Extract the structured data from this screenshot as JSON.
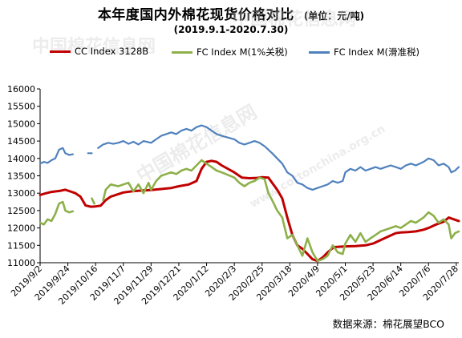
{
  "title": "本年度国内外棉花现货价格对比",
  "unit": "(单位：元/吨)",
  "subtitle": "(2019.9.1-2020.7.30)",
  "source": "数据来源：棉花展望BCO",
  "watermarks": [
    "中国棉花信息网",
    "www.cottonchina.org.cn"
  ],
  "chart_data": {
    "type": "line",
    "ylim": [
      11000,
      16000
    ],
    "yticks": [
      11000,
      11500,
      12000,
      12500,
      13000,
      13500,
      14000,
      14500,
      15000,
      15500,
      16000
    ],
    "xlim": [
      "2019-09-02",
      "2020-07-30"
    ],
    "xticks": [
      "2019/9/2",
      "2019/9/24",
      "2019/10/16",
      "2019/11/7",
      "2019/11/29",
      "2019/12/21",
      "2020/1/12",
      "2020/2/3",
      "2020/2/25",
      "2020/3/18",
      "2020/4/9",
      "2020/5/1",
      "2020/5/23",
      "2020/6/14",
      "2020/7/6",
      "2020/7/28"
    ],
    "grid": false,
    "legend_position": "top",
    "series": [
      {
        "name": "CC Index 3128B",
        "color": "#c00000",
        "points": [
          [
            "2019-09-02",
            12950
          ],
          [
            "2019-09-06",
            12990
          ],
          [
            "2019-09-10",
            13030
          ],
          [
            "2019-09-14",
            13050
          ],
          [
            "2019-09-18",
            13070
          ],
          [
            "2019-09-22",
            13100
          ],
          [
            "2019-09-26",
            13050
          ],
          [
            "2019-09-30",
            13000
          ],
          [
            "2019-10-04",
            12900
          ],
          [
            "2019-10-08",
            12650
          ],
          [
            "2019-10-12",
            12610
          ],
          [
            "2019-10-16",
            12620
          ],
          [
            "2019-10-20",
            12640
          ],
          [
            "2019-10-24",
            12800
          ],
          [
            "2019-10-28",
            12900
          ],
          [
            "2019-11-01",
            12950
          ],
          [
            "2019-11-07",
            13020
          ],
          [
            "2019-11-15",
            13060
          ],
          [
            "2019-11-23",
            13080
          ],
          [
            "2019-11-29",
            13090
          ],
          [
            "2019-12-07",
            13120
          ],
          [
            "2019-12-15",
            13150
          ],
          [
            "2019-12-21",
            13200
          ],
          [
            "2019-12-29",
            13250
          ],
          [
            "2020-01-04",
            13350
          ],
          [
            "2020-01-08",
            13700
          ],
          [
            "2020-01-12",
            13900
          ],
          [
            "2020-01-16",
            13930
          ],
          [
            "2020-01-20",
            13900
          ],
          [
            "2020-01-24",
            13800
          ],
          [
            "2020-02-03",
            13600
          ],
          [
            "2020-02-09",
            13450
          ],
          [
            "2020-02-15",
            13430
          ],
          [
            "2020-02-21",
            13440
          ],
          [
            "2020-02-25",
            13460
          ],
          [
            "2020-03-01",
            13450
          ],
          [
            "2020-03-04",
            13300
          ],
          [
            "2020-03-08",
            13100
          ],
          [
            "2020-03-12",
            12850
          ],
          [
            "2020-03-16",
            12300
          ],
          [
            "2020-03-20",
            11800
          ],
          [
            "2020-03-24",
            11500
          ],
          [
            "2020-03-28",
            11400
          ],
          [
            "2020-04-01",
            11250
          ],
          [
            "2020-04-05",
            11100
          ],
          [
            "2020-04-09",
            11050
          ],
          [
            "2020-04-13",
            11150
          ],
          [
            "2020-04-17",
            11300
          ],
          [
            "2020-04-22",
            11450
          ],
          [
            "2020-05-01",
            11470
          ],
          [
            "2020-05-09",
            11480
          ],
          [
            "2020-05-17",
            11500
          ],
          [
            "2020-05-23",
            11550
          ],
          [
            "2020-05-29",
            11650
          ],
          [
            "2020-06-04",
            11750
          ],
          [
            "2020-06-10",
            11850
          ],
          [
            "2020-06-14",
            11870
          ],
          [
            "2020-06-20",
            11880
          ],
          [
            "2020-06-26",
            11900
          ],
          [
            "2020-07-02",
            11950
          ],
          [
            "2020-07-06",
            12000
          ],
          [
            "2020-07-12",
            12100
          ],
          [
            "2020-07-18",
            12180
          ],
          [
            "2020-07-22",
            12300
          ],
          [
            "2020-07-26",
            12250
          ],
          [
            "2020-07-30",
            12200
          ]
        ]
      },
      {
        "name": "FC Index M(1%关税)",
        "color": "#8db04a",
        "points": [
          [
            "2019-09-02",
            12150
          ],
          [
            "2019-09-05",
            12100
          ],
          [
            "2019-09-08",
            12250
          ],
          [
            "2019-09-11",
            12200
          ],
          [
            "2019-09-14",
            12400
          ],
          [
            "2019-09-17",
            12700
          ],
          [
            "2019-09-20",
            12750
          ],
          [
            "2019-09-22",
            12500
          ],
          [
            "2019-09-25",
            12450
          ],
          [
            "2019-09-28",
            12480
          ],
          [
            "2019-09-30",
            null
          ],
          [
            "2019-10-13",
            12850
          ],
          [
            "2019-10-15",
            12700
          ],
          [
            "2019-10-16",
            null
          ],
          [
            "2019-10-22",
            12800
          ],
          [
            "2019-10-24",
            13100
          ],
          [
            "2019-10-28",
            13250
          ],
          [
            "2019-11-03",
            13200
          ],
          [
            "2019-11-07",
            13250
          ],
          [
            "2019-11-11",
            13300
          ],
          [
            "2019-11-15",
            13050
          ],
          [
            "2019-11-19",
            13250
          ],
          [
            "2019-11-23",
            13000
          ],
          [
            "2019-11-27",
            13300
          ],
          [
            "2019-11-29",
            13100
          ],
          [
            "2019-12-03",
            13350
          ],
          [
            "2019-12-07",
            13500
          ],
          [
            "2019-12-11",
            13550
          ],
          [
            "2019-12-15",
            13600
          ],
          [
            "2019-12-19",
            13550
          ],
          [
            "2019-12-23",
            13650
          ],
          [
            "2019-12-27",
            13700
          ],
          [
            "2019-12-31",
            13650
          ],
          [
            "2020-01-04",
            13800
          ],
          [
            "2020-01-08",
            13950
          ],
          [
            "2020-01-12",
            13850
          ],
          [
            "2020-01-16",
            13750
          ],
          [
            "2020-01-20",
            13650
          ],
          [
            "2020-01-24",
            13600
          ],
          [
            "2020-02-03",
            13450
          ],
          [
            "2020-02-07",
            13300
          ],
          [
            "2020-02-11",
            13200
          ],
          [
            "2020-02-15",
            13300
          ],
          [
            "2020-02-19",
            13350
          ],
          [
            "2020-02-23",
            13450
          ],
          [
            "2020-02-27",
            13400
          ],
          [
            "2020-03-01",
            13000
          ],
          [
            "2020-03-04",
            12800
          ],
          [
            "2020-03-08",
            12500
          ],
          [
            "2020-03-12",
            12300
          ],
          [
            "2020-03-16",
            11700
          ],
          [
            "2020-03-20",
            11800
          ],
          [
            "2020-03-24",
            11500
          ],
          [
            "2020-03-28",
            11200
          ],
          [
            "2020-04-01",
            11700
          ],
          [
            "2020-04-05",
            11300
          ],
          [
            "2020-04-09",
            11050
          ],
          [
            "2020-04-13",
            11100
          ],
          [
            "2020-04-17",
            11200
          ],
          [
            "2020-04-21",
            11500
          ],
          [
            "2020-04-25",
            11300
          ],
          [
            "2020-04-29",
            11250
          ],
          [
            "2020-05-01",
            11550
          ],
          [
            "2020-05-05",
            11800
          ],
          [
            "2020-05-09",
            11600
          ],
          [
            "2020-05-13",
            11850
          ],
          [
            "2020-05-17",
            11600
          ],
          [
            "2020-05-21",
            11700
          ],
          [
            "2020-05-25",
            11800
          ],
          [
            "2020-05-29",
            11900
          ],
          [
            "2020-06-02",
            11950
          ],
          [
            "2020-06-06",
            12000
          ],
          [
            "2020-06-10",
            12050
          ],
          [
            "2020-06-14",
            12000
          ],
          [
            "2020-06-18",
            12100
          ],
          [
            "2020-06-22",
            12200
          ],
          [
            "2020-06-26",
            12150
          ],
          [
            "2020-07-02",
            12300
          ],
          [
            "2020-07-06",
            12450
          ],
          [
            "2020-07-10",
            12350
          ],
          [
            "2020-07-14",
            12150
          ],
          [
            "2020-07-18",
            12250
          ],
          [
            "2020-07-22",
            12100
          ],
          [
            "2020-07-24",
            11700
          ],
          [
            "2020-07-27",
            11850
          ],
          [
            "2020-07-30",
            11900
          ]
        ]
      },
      {
        "name": "FC Index M(滑准税)",
        "color": "#4f81bd",
        "points": [
          [
            "2019-09-02",
            13850
          ],
          [
            "2019-09-05",
            13900
          ],
          [
            "2019-09-08",
            13870
          ],
          [
            "2019-09-11",
            13950
          ],
          [
            "2019-09-14",
            14000
          ],
          [
            "2019-09-17",
            14250
          ],
          [
            "2019-09-20",
            14300
          ],
          [
            "2019-09-22",
            14150
          ],
          [
            "2019-09-25",
            14100
          ],
          [
            "2019-09-28",
            14120
          ],
          [
            "2019-09-30",
            null
          ],
          [
            "2019-10-10",
            14150
          ],
          [
            "2019-10-13",
            14150
          ],
          [
            "2019-10-14",
            null
          ],
          [
            "2019-10-18",
            14300
          ],
          [
            "2019-10-22",
            14400
          ],
          [
            "2019-10-26",
            14450
          ],
          [
            "2019-10-30",
            14420
          ],
          [
            "2019-11-03",
            14450
          ],
          [
            "2019-11-07",
            14500
          ],
          [
            "2019-11-11",
            14420
          ],
          [
            "2019-11-15",
            14480
          ],
          [
            "2019-11-19",
            14400
          ],
          [
            "2019-11-23",
            14500
          ],
          [
            "2019-11-29",
            14450
          ],
          [
            "2019-12-03",
            14550
          ],
          [
            "2019-12-07",
            14650
          ],
          [
            "2019-12-11",
            14700
          ],
          [
            "2019-12-15",
            14750
          ],
          [
            "2019-12-19",
            14700
          ],
          [
            "2019-12-23",
            14800
          ],
          [
            "2019-12-27",
            14850
          ],
          [
            "2019-12-31",
            14800
          ],
          [
            "2020-01-04",
            14900
          ],
          [
            "2020-01-08",
            14950
          ],
          [
            "2020-01-12",
            14900
          ],
          [
            "2020-01-16",
            14800
          ],
          [
            "2020-01-20",
            14700
          ],
          [
            "2020-01-24",
            14650
          ],
          [
            "2020-02-03",
            14550
          ],
          [
            "2020-02-07",
            14450
          ],
          [
            "2020-02-11",
            14400
          ],
          [
            "2020-02-15",
            14450
          ],
          [
            "2020-02-19",
            14500
          ],
          [
            "2020-02-23",
            14450
          ],
          [
            "2020-02-27",
            14350
          ],
          [
            "2020-03-01",
            14250
          ],
          [
            "2020-03-04",
            14150
          ],
          [
            "2020-03-08",
            14000
          ],
          [
            "2020-03-12",
            13850
          ],
          [
            "2020-03-16",
            13600
          ],
          [
            "2020-03-20",
            13500
          ],
          [
            "2020-03-24",
            13300
          ],
          [
            "2020-03-28",
            13250
          ],
          [
            "2020-04-01",
            13150
          ],
          [
            "2020-04-05",
            13100
          ],
          [
            "2020-04-09",
            13150
          ],
          [
            "2020-04-13",
            13200
          ],
          [
            "2020-04-17",
            13250
          ],
          [
            "2020-04-21",
            13350
          ],
          [
            "2020-04-25",
            13300
          ],
          [
            "2020-04-29",
            13350
          ],
          [
            "2020-05-01",
            13600
          ],
          [
            "2020-05-05",
            13700
          ],
          [
            "2020-05-09",
            13650
          ],
          [
            "2020-05-13",
            13750
          ],
          [
            "2020-05-17",
            13650
          ],
          [
            "2020-05-21",
            13700
          ],
          [
            "2020-05-25",
            13750
          ],
          [
            "2020-05-29",
            13700
          ],
          [
            "2020-06-02",
            13750
          ],
          [
            "2020-06-06",
            13800
          ],
          [
            "2020-06-10",
            13750
          ],
          [
            "2020-06-14",
            13700
          ],
          [
            "2020-06-18",
            13800
          ],
          [
            "2020-06-22",
            13850
          ],
          [
            "2020-06-26",
            13800
          ],
          [
            "2020-07-02",
            13900
          ],
          [
            "2020-07-06",
            14000
          ],
          [
            "2020-07-10",
            13950
          ],
          [
            "2020-07-14",
            13800
          ],
          [
            "2020-07-18",
            13850
          ],
          [
            "2020-07-22",
            13750
          ],
          [
            "2020-07-24",
            13600
          ],
          [
            "2020-07-27",
            13650
          ],
          [
            "2020-07-30",
            13750
          ]
        ]
      }
    ]
  }
}
